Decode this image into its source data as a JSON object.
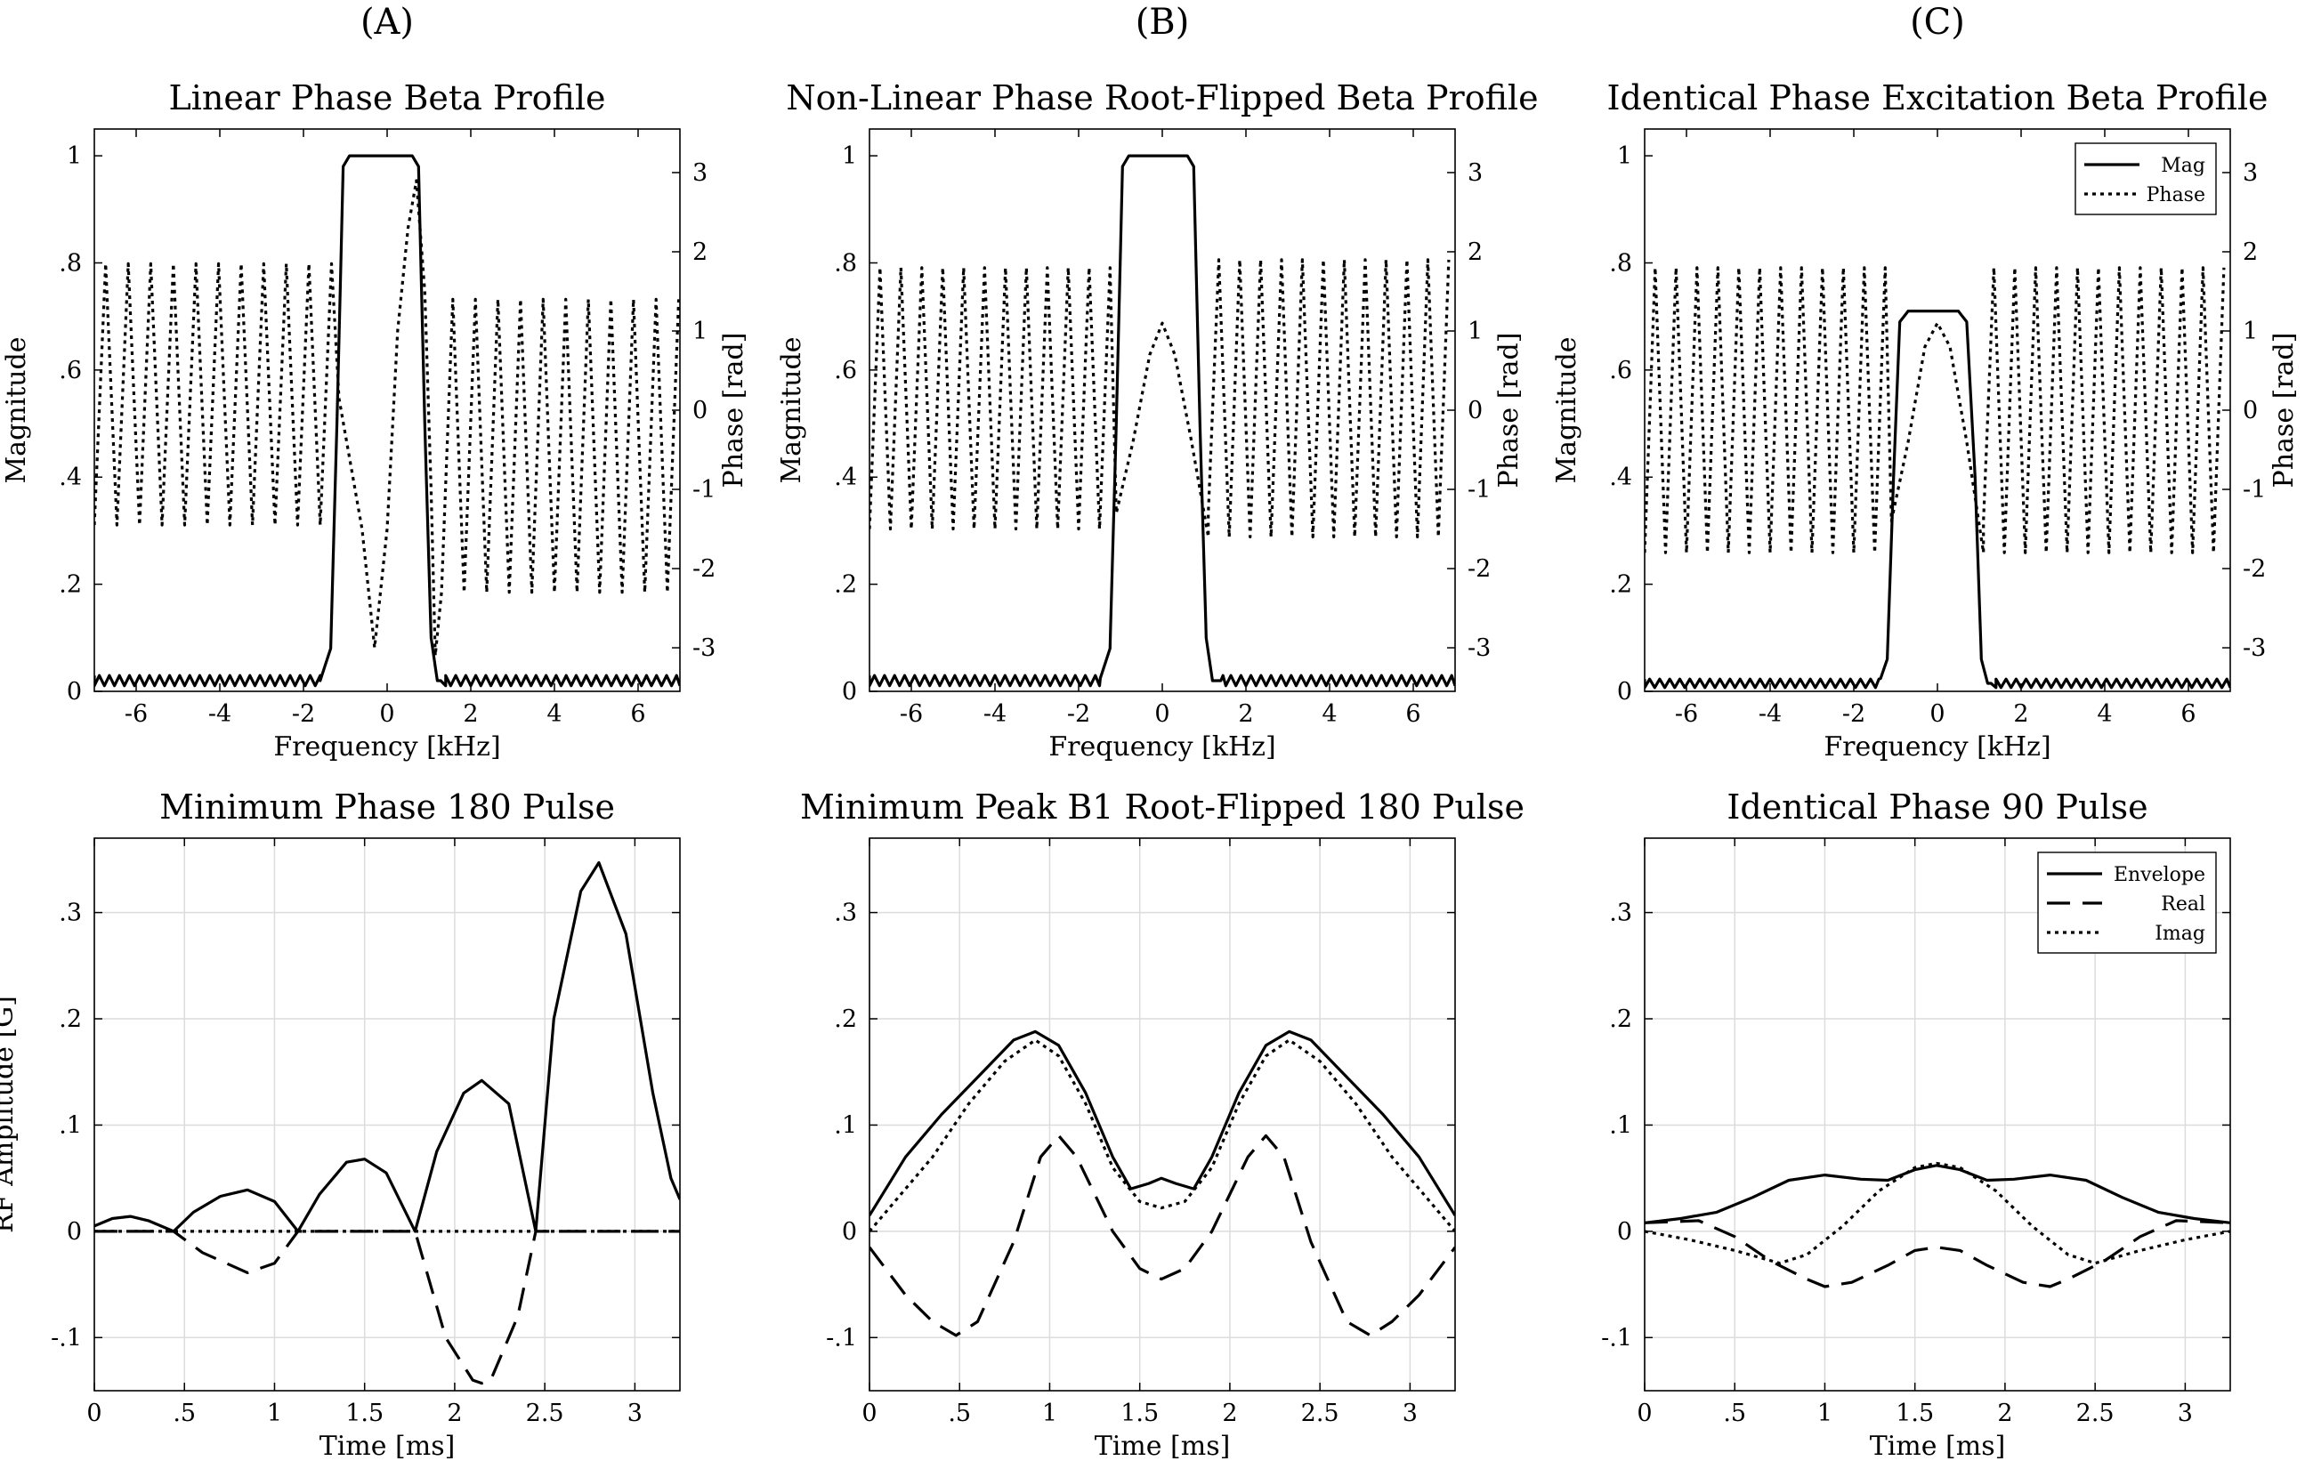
{
  "figure": {
    "panel_labels": [
      "(A)",
      "(B)",
      "(C)"
    ]
  },
  "chart_data": [
    {
      "type": "line",
      "title": "Linear Phase Beta Profile",
      "xlabel": "Frequency [kHz]",
      "ylabel": "Magnitude",
      "y2label": "Phase [rad]",
      "xlim": [
        -7,
        7
      ],
      "ylim": [
        0,
        1.05
      ],
      "y2lim": [
        -3.55,
        3.55
      ],
      "xticks": [
        -6,
        -4,
        -2,
        0,
        2,
        4,
        6
      ],
      "yticks": [
        0,
        0.2,
        0.4,
        0.6,
        0.8,
        1
      ],
      "y2ticks": [
        -3,
        -2,
        -1,
        0,
        1,
        2,
        3
      ],
      "grid": false,
      "legend": null,
      "series": [
        {
          "name": "Mag",
          "style": "solid",
          "axis": "left",
          "x": [
            -7,
            -1.6,
            -1.35,
            -1.2,
            -1.05,
            -0.9,
            0.6,
            0.75,
            0.9,
            1.05,
            1.2,
            1.4,
            7
          ],
          "y": [
            0.02,
            0.02,
            0.08,
            0.5,
            0.98,
            1.0,
            1.0,
            0.98,
            0.5,
            0.1,
            0.02,
            0.02,
            0.02
          ],
          "ripple": 0.012
        },
        {
          "name": "Phase",
          "style": "dotted",
          "axis": "right",
          "osc": [
            {
              "from": -7,
              "to": -1.2,
              "period": 0.54,
              "lo": -1.45,
              "hi": 1.85
            },
            {
              "from": 1.3,
              "to": 7,
              "period": 0.54,
              "lo": -2.3,
              "hi": 1.4
            }
          ],
          "center": {
            "x": [
              -1.15,
              -0.6,
              -0.3,
              0,
              0.25,
              0.5,
              0.7,
              0.9,
              1.05,
              1.15
            ],
            "y": [
              0.15,
              -1.5,
              -3.0,
              -1.5,
              1.0,
              2.3,
              2.9,
              1.5,
              -1.0,
              -3.1
            ]
          }
        }
      ]
    },
    {
      "type": "line",
      "title": "Non-Linear Phase Root-Flipped Beta Profile",
      "xlabel": "Frequency [kHz]",
      "ylabel": "Magnitude",
      "y2label": "Phase [rad]",
      "xlim": [
        -7,
        7
      ],
      "ylim": [
        0,
        1.05
      ],
      "y2lim": [
        -3.55,
        3.55
      ],
      "xticks": [
        -6,
        -4,
        -2,
        0,
        2,
        4,
        6
      ],
      "yticks": [
        0,
        0.2,
        0.4,
        0.6,
        0.8,
        1
      ],
      "y2ticks": [
        -3,
        -2,
        -1,
        0,
        1,
        2,
        3
      ],
      "grid": false,
      "legend": null,
      "series": [
        {
          "name": "Mag",
          "style": "solid",
          "axis": "left",
          "x": [
            -7,
            -1.5,
            -1.25,
            -1.1,
            -0.95,
            -0.8,
            0.6,
            0.75,
            0.9,
            1.05,
            1.2,
            1.45,
            7
          ],
          "y": [
            0.02,
            0.02,
            0.08,
            0.5,
            0.98,
            1.0,
            1.0,
            0.98,
            0.5,
            0.1,
            0.02,
            0.02,
            0.02
          ],
          "ripple": 0.012
        },
        {
          "name": "Phase",
          "style": "dotted",
          "axis": "right",
          "osc": [
            {
              "from": -7,
              "to": -1.1,
              "period": 0.5,
              "lo": -1.5,
              "hi": 1.8
            },
            {
              "from": 1.1,
              "to": 7,
              "period": 0.5,
              "lo": -1.6,
              "hi": 1.9
            }
          ],
          "center": {
            "x": [
              -1.1,
              -0.7,
              -0.3,
              0,
              0.3,
              0.7,
              1.1
            ],
            "y": [
              -1.3,
              -0.4,
              0.7,
              1.1,
              0.7,
              -0.4,
              -1.3
            ]
          }
        }
      ]
    },
    {
      "type": "line",
      "title": "Identical Phase Excitation Beta Profile",
      "xlabel": "Frequency [kHz]",
      "ylabel": "Magnitude",
      "y2label": "Phase [rad]",
      "xlim": [
        -7,
        7
      ],
      "ylim": [
        0,
        1.05
      ],
      "y2lim": [
        -3.55,
        3.55
      ],
      "xticks": [
        -6,
        -4,
        -2,
        0,
        2,
        4,
        6
      ],
      "yticks": [
        0,
        0.2,
        0.4,
        0.6,
        0.8,
        1
      ],
      "y2ticks": [
        -3,
        -2,
        -1,
        0,
        1,
        2,
        3
      ],
      "grid": false,
      "legend": {
        "position": "top-right",
        "entries": [
          "Mag",
          "Phase"
        ]
      },
      "series": [
        {
          "name": "Mag",
          "style": "solid",
          "axis": "left",
          "x": [
            -7,
            -1.4,
            -1.2,
            -1.05,
            -0.9,
            -0.7,
            0.5,
            0.7,
            0.9,
            1.05,
            1.2,
            1.4,
            7
          ],
          "y": [
            0.015,
            0.015,
            0.06,
            0.4,
            0.69,
            0.71,
            0.71,
            0.69,
            0.4,
            0.06,
            0.015,
            0.015,
            0.015
          ],
          "ripple": 0.01
        },
        {
          "name": "Phase",
          "style": "dotted",
          "axis": "right",
          "osc": [
            {
              "from": -7,
              "to": -1.1,
              "period": 0.5,
              "lo": -1.8,
              "hi": 1.8
            },
            {
              "from": 1.1,
              "to": 7,
              "period": 0.5,
              "lo": -1.8,
              "hi": 1.8
            }
          ],
          "center": {
            "x": [
              -1.1,
              -0.7,
              -0.3,
              0,
              0.3,
              0.7,
              1.1
            ],
            "y": [
              -1.4,
              -0.4,
              0.8,
              1.1,
              0.8,
              -0.4,
              -1.4
            ]
          }
        }
      ]
    },
    {
      "type": "line",
      "title": "Minimum Phase 180 Pulse",
      "xlabel": "Time [ms]",
      "ylabel": "RF Amplitude [G]",
      "xlim": [
        0,
        3.25
      ],
      "ylim": [
        -0.15,
        0.37
      ],
      "xticks": [
        0,
        0.5,
        1,
        1.5,
        2,
        2.5,
        3
      ],
      "yticks": [
        -0.1,
        0,
        0.1,
        0.2,
        0.3
      ],
      "grid": true,
      "legend": null,
      "series": [
        {
          "name": "Envelope",
          "style": "solid",
          "x": [
            0,
            0.1,
            0.2,
            0.3,
            0.44,
            0.55,
            0.7,
            0.85,
            1.0,
            1.13,
            1.25,
            1.4,
            1.5,
            1.62,
            1.78,
            1.9,
            2.05,
            2.15,
            2.3,
            2.45,
            2.55,
            2.7,
            2.8,
            2.95,
            3.1,
            3.2,
            3.25
          ],
          "y": [
            0.005,
            0.012,
            0.014,
            0.01,
            0.0,
            0.018,
            0.033,
            0.039,
            0.028,
            0.0,
            0.035,
            0.065,
            0.068,
            0.055,
            0.0,
            0.075,
            0.13,
            0.142,
            0.12,
            0.0,
            0.2,
            0.32,
            0.347,
            0.28,
            0.13,
            0.05,
            0.03
          ]
        },
        {
          "name": "Real",
          "style": "dashed",
          "x": [
            0,
            0.44,
            0.6,
            0.85,
            1.0,
            1.13,
            1.78,
            1.95,
            2.1,
            2.15,
            2.2,
            2.35,
            2.45,
            3.25
          ],
          "y": [
            0,
            0,
            -0.02,
            -0.039,
            -0.03,
            0,
            0,
            -0.1,
            -0.14,
            -0.143,
            -0.14,
            -0.08,
            0,
            0
          ]
        },
        {
          "name": "Imag",
          "style": "dotted",
          "x": [
            0,
            3.25
          ],
          "y": [
            0,
            0
          ]
        }
      ]
    },
    {
      "type": "line",
      "title": "Minimum Peak B1 Root-Flipped 180 Pulse",
      "xlabel": "Time [ms]",
      "ylabel": "",
      "xlim": [
        0,
        3.25
      ],
      "ylim": [
        -0.15,
        0.37
      ],
      "xticks": [
        0,
        0.5,
        1,
        1.5,
        2,
        2.5,
        3
      ],
      "yticks": [
        -0.1,
        0,
        0.1,
        0.2,
        0.3
      ],
      "grid": true,
      "legend": null,
      "series": [
        {
          "name": "Envelope",
          "style": "solid",
          "x": [
            0,
            0.2,
            0.4,
            0.6,
            0.8,
            0.92,
            1.05,
            1.2,
            1.35,
            1.45,
            1.55,
            1.62,
            1.7,
            1.8,
            1.9,
            2.05,
            2.2,
            2.33,
            2.45,
            2.65,
            2.85,
            3.05,
            3.25
          ],
          "y": [
            0.015,
            0.07,
            0.11,
            0.145,
            0.18,
            0.188,
            0.175,
            0.13,
            0.07,
            0.04,
            0.045,
            0.05,
            0.045,
            0.04,
            0.07,
            0.13,
            0.175,
            0.188,
            0.18,
            0.145,
            0.11,
            0.07,
            0.015
          ]
        },
        {
          "name": "Real",
          "style": "dashed",
          "x": [
            0,
            0.2,
            0.35,
            0.48,
            0.6,
            0.8,
            0.95,
            1.05,
            1.15,
            1.35,
            1.5,
            1.62,
            1.75,
            1.9,
            2.1,
            2.2,
            2.3,
            2.45,
            2.65,
            2.78,
            2.9,
            3.05,
            3.25
          ],
          "y": [
            -0.015,
            -0.06,
            -0.085,
            -0.098,
            -0.085,
            -0.01,
            0.07,
            0.09,
            0.07,
            0.0,
            -0.035,
            -0.045,
            -0.035,
            0.0,
            0.07,
            0.09,
            0.07,
            -0.01,
            -0.085,
            -0.098,
            -0.085,
            -0.06,
            -0.015
          ]
        },
        {
          "name": "Imag",
          "style": "dotted",
          "x": [
            0,
            0.15,
            0.35,
            0.55,
            0.75,
            0.92,
            1.05,
            1.2,
            1.35,
            1.5,
            1.62,
            1.75,
            1.9,
            2.05,
            2.2,
            2.33,
            2.5,
            2.7,
            2.9,
            3.1,
            3.25
          ],
          "y": [
            0.0,
            0.03,
            0.07,
            0.12,
            0.16,
            0.18,
            0.165,
            0.12,
            0.06,
            0.028,
            0.022,
            0.028,
            0.06,
            0.12,
            0.165,
            0.18,
            0.16,
            0.12,
            0.07,
            0.03,
            0.0
          ]
        }
      ]
    },
    {
      "type": "line",
      "title": "Identical Phase 90 Pulse",
      "xlabel": "Time [ms]",
      "ylabel": "",
      "xlim": [
        0,
        3.25
      ],
      "ylim": [
        -0.15,
        0.37
      ],
      "xticks": [
        0,
        0.5,
        1,
        1.5,
        2,
        2.5,
        3
      ],
      "yticks": [
        -0.1,
        0,
        0.1,
        0.2,
        0.3
      ],
      "grid": true,
      "legend": {
        "position": "top-right",
        "entries": [
          "Envelope",
          "Real",
          "Imag"
        ]
      },
      "series": [
        {
          "name": "Envelope",
          "style": "solid",
          "x": [
            0,
            0.2,
            0.4,
            0.6,
            0.8,
            1.0,
            1.2,
            1.35,
            1.5,
            1.62,
            1.75,
            1.9,
            2.05,
            2.25,
            2.45,
            2.65,
            2.85,
            3.05,
            3.25
          ],
          "y": [
            0.008,
            0.012,
            0.018,
            0.032,
            0.048,
            0.053,
            0.049,
            0.048,
            0.058,
            0.062,
            0.058,
            0.048,
            0.049,
            0.053,
            0.048,
            0.032,
            0.018,
            0.012,
            0.008
          ]
        },
        {
          "name": "Real",
          "style": "dashed",
          "x": [
            0,
            0.3,
            0.5,
            0.7,
            0.9,
            1.0,
            1.15,
            1.35,
            1.5,
            1.62,
            1.75,
            1.9,
            2.1,
            2.25,
            2.35,
            2.55,
            2.75,
            2.95,
            3.25
          ],
          "y": [
            0.008,
            0.01,
            -0.005,
            -0.028,
            -0.045,
            -0.052,
            -0.048,
            -0.032,
            -0.018,
            -0.015,
            -0.018,
            -0.032,
            -0.048,
            -0.052,
            -0.045,
            -0.028,
            -0.005,
            0.01,
            0.008
          ]
        },
        {
          "name": "Imag",
          "style": "dotted",
          "x": [
            0,
            0.25,
            0.5,
            0.75,
            0.9,
            1.1,
            1.3,
            1.5,
            1.62,
            1.75,
            1.95,
            2.15,
            2.35,
            2.5,
            2.75,
            3.0,
            3.25
          ],
          "y": [
            0.0,
            -0.008,
            -0.018,
            -0.03,
            -0.022,
            0.005,
            0.038,
            0.06,
            0.064,
            0.06,
            0.038,
            0.005,
            -0.022,
            -0.03,
            -0.018,
            -0.008,
            0.0
          ]
        }
      ]
    }
  ]
}
